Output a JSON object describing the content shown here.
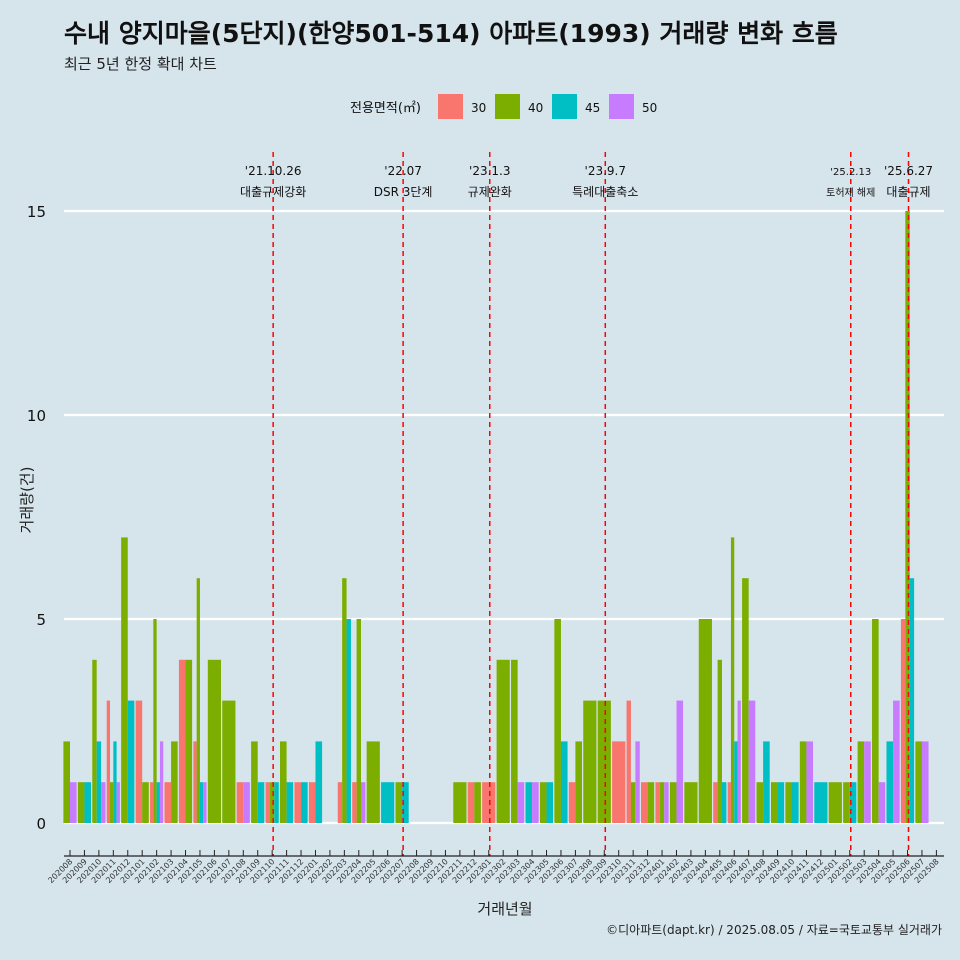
{
  "title": "수내 양지마을(5단지)(한양501-514) 아파트(1993) 거래량 변화 흐름",
  "subtitle": "최근 5년 한정 확대 차트",
  "caption": "©디아파트(dapt.kr) / 2025.08.05 / 자료=국토교통부 실거래가",
  "chart_data": {
    "type": "bar",
    "xlabel": "거래년월",
    "ylabel": "거래량(건)",
    "ylim": [
      0,
      15
    ],
    "yticks": [
      0,
      5,
      10,
      15
    ],
    "grid": true,
    "legend": {
      "title": "전용면적(㎡)",
      "placement": "top"
    },
    "categories": [
      "202008",
      "202009",
      "202010",
      "202011",
      "202012",
      "202101",
      "202102",
      "202103",
      "202104",
      "202105",
      "202106",
      "202107",
      "202108",
      "202109",
      "202110",
      "202111",
      "202112",
      "202201",
      "202202",
      "202203",
      "202204",
      "202205",
      "202206",
      "202207",
      "202208",
      "202209",
      "202210",
      "202211",
      "202212",
      "202301",
      "202302",
      "202303",
      "202304",
      "202305",
      "202306",
      "202307",
      "202308",
      "202309",
      "202310",
      "202311",
      "202312",
      "202401",
      "202402",
      "202403",
      "202404",
      "202405",
      "202406",
      "202407",
      "202408",
      "202409",
      "202410",
      "202411",
      "202412",
      "202501",
      "202502",
      "202503",
      "202504",
      "202505",
      "202506",
      "202507",
      "202508"
    ],
    "series": [
      {
        "name": "30",
        "color": "#f8766d",
        "values": [
          0,
          0,
          0,
          3,
          0,
          3,
          1,
          1,
          4,
          2,
          0,
          0,
          1,
          0,
          1,
          0,
          1,
          1,
          0,
          1,
          1,
          0,
          0,
          0,
          0,
          0,
          0,
          0,
          1,
          1,
          0,
          0,
          0,
          0,
          0,
          1,
          0,
          0,
          2,
          3,
          1,
          1,
          0,
          0,
          0,
          1,
          1,
          0,
          0,
          0,
          0,
          0,
          0,
          0,
          0,
          0,
          0,
          0,
          5,
          0,
          0
        ]
      },
      {
        "name": "40",
        "color": "#7cae00",
        "values": [
          2,
          1,
          4,
          1,
          7,
          1,
          5,
          2,
          4,
          6,
          4,
          3,
          0,
          2,
          1,
          2,
          0,
          0,
          0,
          6,
          5,
          2,
          0,
          1,
          0,
          0,
          0,
          1,
          1,
          0,
          4,
          4,
          0,
          1,
          5,
          2,
          3,
          3,
          0,
          1,
          1,
          1,
          1,
          1,
          5,
          4,
          7,
          6,
          1,
          1,
          1,
          2,
          0,
          1,
          1,
          2,
          5,
          0,
          15,
          2,
          0
        ]
      },
      {
        "name": "45",
        "color": "#00bfc4",
        "values": [
          0,
          1,
          2,
          2,
          3,
          0,
          1,
          0,
          0,
          1,
          0,
          0,
          0,
          1,
          1,
          1,
          1,
          2,
          0,
          5,
          0,
          0,
          1,
          1,
          0,
          0,
          0,
          0,
          0,
          0,
          0,
          0,
          1,
          1,
          2,
          0,
          0,
          0,
          0,
          0,
          0,
          0,
          0,
          0,
          0,
          1,
          2,
          0,
          2,
          1,
          1,
          0,
          1,
          0,
          1,
          0,
          0,
          2,
          6,
          0,
          0
        ]
      },
      {
        "name": "50",
        "color": "#c77cff",
        "values": [
          1,
          0,
          1,
          1,
          0,
          0,
          2,
          0,
          0,
          1,
          0,
          0,
          1,
          0,
          0,
          0,
          0,
          0,
          0,
          0,
          1,
          0,
          0,
          0,
          0,
          0,
          0,
          0,
          0,
          0,
          0,
          1,
          1,
          0,
          0,
          0,
          0,
          0,
          0,
          2,
          0,
          1,
          3,
          0,
          0,
          0,
          3,
          3,
          0,
          0,
          0,
          2,
          0,
          0,
          0,
          2,
          1,
          3,
          0,
          2,
          0
        ]
      }
    ],
    "annotations": [
      {
        "date": "'21.10.26",
        "label": "대출규제강화",
        "at": "202110"
      },
      {
        "date": "'22.07",
        "label": "DSR 3단계",
        "at": "202207"
      },
      {
        "date": "'23.1.3",
        "label": "규제완화",
        "at": "202301"
      },
      {
        "date": "'23.9.7",
        "label": "특례대출축소",
        "at": "202309"
      },
      {
        "date": "'25.2.13",
        "label": "토허제 해제",
        "at": "202502"
      },
      {
        "date": "'25.6.27",
        "label": "대출규제",
        "at": "202506"
      }
    ]
  }
}
